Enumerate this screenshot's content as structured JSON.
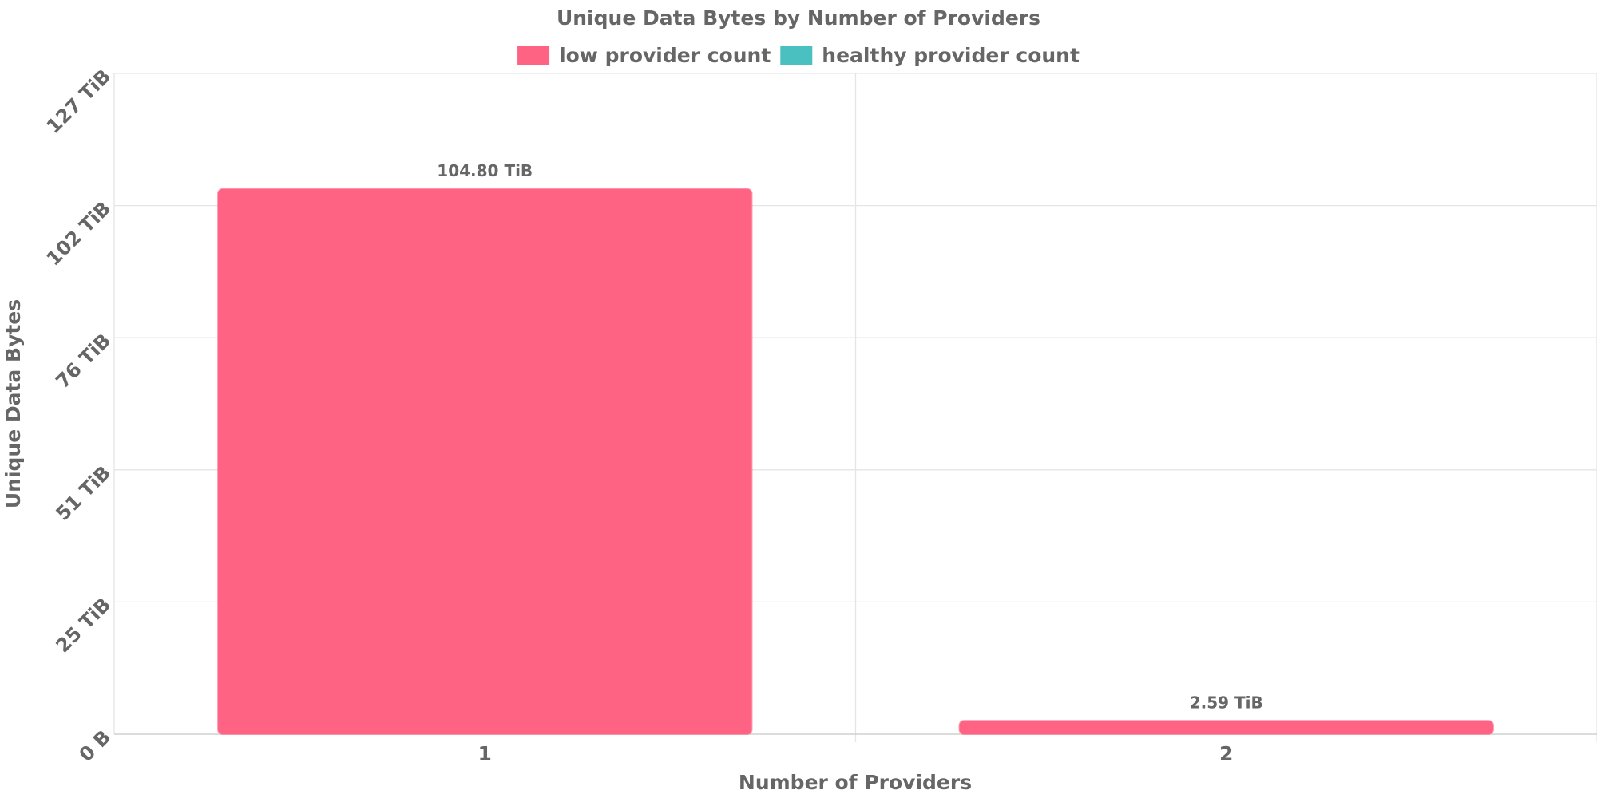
{
  "chart_data": {
    "type": "bar",
    "title": "Unique Data Bytes by Number of Providers",
    "x_label": "Number of Providers",
    "y_label": "Unique Data Bytes",
    "categories": [
      "1",
      "2"
    ],
    "series": [
      {
        "name": "low provider count",
        "color": "#ff6384",
        "values": [
          104.8,
          2.59
        ],
        "value_labels": [
          "104.80 TiB",
          "2.59 TiB"
        ]
      },
      {
        "name": "healthy provider count",
        "color": "#4bc0c0",
        "values": [
          null,
          null
        ]
      }
    ],
    "ylim": [
      0,
      127
    ],
    "yticks": [
      {
        "value": 0,
        "label": "0 B"
      },
      {
        "value": 25.4,
        "label": "25 TiB"
      },
      {
        "value": 50.8,
        "label": "51 TiB"
      },
      {
        "value": 76.2,
        "label": "76 TiB"
      },
      {
        "value": 101.6,
        "label": "102 TiB"
      },
      {
        "value": 127,
        "label": "127 TiB"
      }
    ],
    "grid": true,
    "legend": "top"
  }
}
